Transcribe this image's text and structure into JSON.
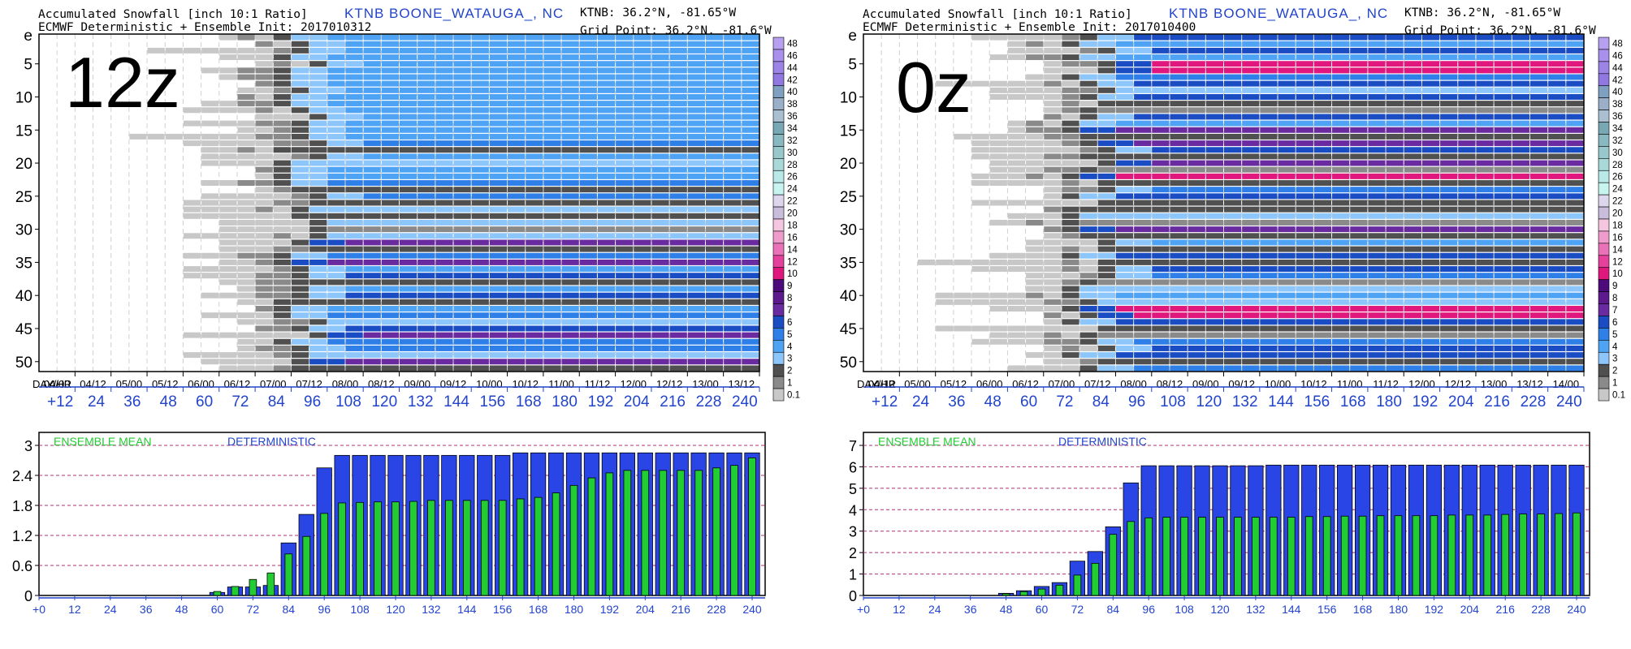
{
  "colors": {
    "blue_text": "#2244cc",
    "deterministic_bar": "#2a45e6",
    "ensemble_bar": "#22cc33",
    "grid_dash": "#b03070"
  },
  "colorbar": {
    "labels": [
      "48",
      "46",
      "44",
      "42",
      "40",
      "38",
      "36",
      "34",
      "32",
      "30",
      "28",
      "26",
      "24",
      "22",
      "20",
      "18",
      "16",
      "14",
      "12",
      "10",
      "9",
      "8",
      "7",
      "6",
      "5",
      "4",
      "3",
      "2",
      "1",
      "0.1"
    ],
    "colors": [
      "#b8a0f0",
      "#a890ec",
      "#9c84e6",
      "#8f78e0",
      "#7fa0c0",
      "#9bb0c8",
      "#aabfd0",
      "#78a8b4",
      "#88b8c0",
      "#98c8cc",
      "#a8d8d8",
      "#b8e8e8",
      "#c8f4f0",
      "#ddd6ec",
      "#c8bedc",
      "#f5c6e0",
      "#ef9ccc",
      "#ea72b8",
      "#e5409c",
      "#e0177c",
      "#4d0a7a",
      "#5c1a8c",
      "#6a2aa0",
      "#1a4cc4",
      "#2e7fe8",
      "#4fa3f5",
      "#8cc6fb",
      "#505050",
      "#8a8a8a",
      "#c8c8c8"
    ]
  },
  "panels": [
    {
      "id": "12z",
      "header": {
        "line1": "Accumulated Snowfall [inch 10:1 Ratio]",
        "line2": "ECMWF Deterministic + Ensemble Init: 2017010312",
        "station": "KTNB BOONE_WATAUGA_, NC",
        "ktnb": "KTNB: 36.2°N, -81.65°W",
        "grid_point": "Grid Point: 36.2°N, -81.6°W"
      },
      "big_label": "12z",
      "plume": {
        "type": "heatmap",
        "ytop_label": "e",
        "yticks": [
          "5",
          "10",
          "15",
          "20",
          "25",
          "30",
          "35",
          "40",
          "45",
          "50"
        ],
        "xtick_header": "DAY/HR",
        "xticks": [
          "04/00",
          "04/12",
          "05/00",
          "05/12",
          "06/00",
          "06/12",
          "07/00",
          "07/12",
          "08/00",
          "08/12",
          "09/00",
          "09/12",
          "10/00",
          "10/12",
          "11/00",
          "11/12",
          "12/00",
          "12/12",
          "13/00",
          "13/12"
        ],
        "forecast_hours": [
          "+12",
          "24",
          "36",
          "48",
          "60",
          "72",
          "84",
          "96",
          "108",
          "120",
          "132",
          "144",
          "156",
          "168",
          "180",
          "192",
          "204",
          "216",
          "228",
          "240"
        ],
        "members": 51,
        "columns": 40,
        "first_snow_column": 11,
        "accumulation_column": 14,
        "peak_members": [
          31,
          34,
          45,
          49
        ]
      },
      "bars": {
        "type": "bar",
        "legend_ensemble": "ENSEMBLE MEAN",
        "legend_deterministic": "DETERMINISTIC",
        "yticks": [
          "0",
          "0.6",
          "1.2",
          "1.8",
          "2.4",
          "3"
        ],
        "ylim": [
          0,
          3
        ],
        "xticks": [
          "+0",
          "12",
          "24",
          "36",
          "48",
          "60",
          "72",
          "84",
          "96",
          "108",
          "120",
          "132",
          "144",
          "156",
          "168",
          "180",
          "192",
          "204",
          "216",
          "228",
          "240"
        ],
        "x": [
          60,
          66,
          72,
          78,
          84,
          90,
          96,
          102,
          108,
          114,
          120,
          126,
          132,
          138,
          144,
          150,
          156,
          162,
          168,
          174,
          180,
          186,
          192,
          198,
          204,
          210,
          216,
          222,
          228,
          234,
          240
        ],
        "deterministic": [
          0.06,
          0.17,
          0.17,
          0.2,
          1.05,
          1.62,
          2.55,
          2.8,
          2.8,
          2.8,
          2.8,
          2.8,
          2.8,
          2.8,
          2.8,
          2.8,
          2.8,
          2.85,
          2.85,
          2.85,
          2.85,
          2.85,
          2.85,
          2.85,
          2.85,
          2.85,
          2.85,
          2.85,
          2.85,
          2.85,
          2.85
        ],
        "ensemble": [
          0.08,
          0.18,
          0.32,
          0.45,
          0.83,
          1.18,
          1.64,
          1.85,
          1.86,
          1.87,
          1.87,
          1.88,
          1.9,
          1.9,
          1.9,
          1.9,
          1.9,
          1.93,
          1.96,
          2.05,
          2.2,
          2.35,
          2.45,
          2.5,
          2.5,
          2.5,
          2.5,
          2.5,
          2.55,
          2.6,
          2.75
        ]
      }
    },
    {
      "id": "0z",
      "header": {
        "line1": "Accumulated Snowfall [inch 10:1 Ratio]",
        "line2": "ECMWF Deterministic + Ensemble Init: 2017010400",
        "station": "KTNB BOONE_WATAUGA_, NC",
        "ktnb": "KTNB: 36.2°N, -81.65°W",
        "grid_point": "Grid Point: 36.2°N, -81.6°W"
      },
      "big_label": "0z",
      "plume": {
        "type": "heatmap",
        "ytop_label": "e",
        "yticks": [
          "5",
          "10",
          "15",
          "20",
          "25",
          "30",
          "35",
          "40",
          "45",
          "50"
        ],
        "xtick_header": "DAY/HR",
        "xticks": [
          "04/12",
          "05/00",
          "05/12",
          "06/00",
          "06/12",
          "07/00",
          "07/12",
          "08/00",
          "08/12",
          "09/00",
          "09/12",
          "10/00",
          "10/12",
          "11/00",
          "11/12",
          "12/00",
          "12/12",
          "13/00",
          "13/12",
          "14/00"
        ],
        "forecast_hours": [
          "+12",
          "24",
          "36",
          "48",
          "60",
          "72",
          "84",
          "96",
          "108",
          "120",
          "132",
          "144",
          "156",
          "168",
          "180",
          "192",
          "204",
          "216",
          "228",
          "240"
        ],
        "members": 51,
        "columns": 40,
        "first_snow_column": 9,
        "accumulation_column": 12,
        "peak_members": [
          4,
          5,
          14,
          16,
          19,
          21,
          29,
          41,
          42
        ]
      },
      "bars": {
        "type": "bar",
        "legend_ensemble": "ENSEMBLE MEAN",
        "legend_deterministic": "DETERMINISTIC",
        "yticks": [
          "0",
          "1",
          "2",
          "3",
          "4",
          "5",
          "6",
          "7"
        ],
        "ylim": [
          0,
          7
        ],
        "xticks": [
          "+0",
          "12",
          "24",
          "36",
          "48",
          "60",
          "72",
          "84",
          "96",
          "108",
          "120",
          "132",
          "144",
          "156",
          "168",
          "180",
          "192",
          "204",
          "216",
          "228",
          "240"
        ],
        "x": [
          48,
          54,
          60,
          66,
          72,
          78,
          84,
          90,
          96,
          102,
          108,
          114,
          120,
          126,
          132,
          138,
          144,
          150,
          156,
          162,
          168,
          174,
          180,
          186,
          192,
          198,
          204,
          210,
          216,
          222,
          228,
          234,
          240
        ],
        "deterministic": [
          0.1,
          0.22,
          0.42,
          0.6,
          1.6,
          2.05,
          3.2,
          5.25,
          6.05,
          6.05,
          6.05,
          6.05,
          6.05,
          6.05,
          6.05,
          6.08,
          6.08,
          6.08,
          6.08,
          6.08,
          6.08,
          6.08,
          6.08,
          6.08,
          6.08,
          6.08,
          6.08,
          6.08,
          6.08,
          6.08,
          6.08,
          6.08,
          6.08
        ],
        "ensemble": [
          0.08,
          0.18,
          0.3,
          0.48,
          0.95,
          1.5,
          2.85,
          3.45,
          3.62,
          3.65,
          3.65,
          3.65,
          3.65,
          3.65,
          3.65,
          3.65,
          3.65,
          3.68,
          3.68,
          3.7,
          3.7,
          3.72,
          3.72,
          3.72,
          3.72,
          3.75,
          3.75,
          3.75,
          3.78,
          3.8,
          3.8,
          3.82,
          3.85
        ]
      }
    }
  ]
}
